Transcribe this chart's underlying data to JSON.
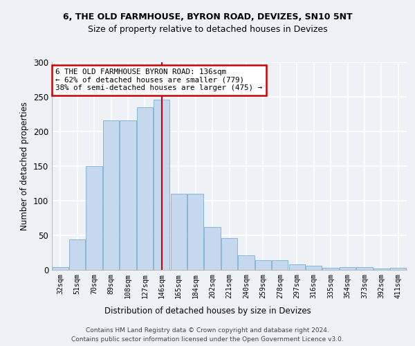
{
  "title1": "6, THE OLD FARMHOUSE, BYRON ROAD, DEVIZES, SN10 5NT",
  "title2": "Size of property relative to detached houses in Devizes",
  "xlabel": "Distribution of detached houses by size in Devizes",
  "ylabel": "Number of detached properties",
  "categories": [
    "32sqm",
    "51sqm",
    "70sqm",
    "89sqm",
    "108sqm",
    "127sqm",
    "146sqm",
    "165sqm",
    "184sqm",
    "202sqm",
    "221sqm",
    "240sqm",
    "259sqm",
    "278sqm",
    "297sqm",
    "316sqm",
    "335sqm",
    "354sqm",
    "373sqm",
    "392sqm",
    "411sqm"
  ],
  "values": [
    4,
    44,
    150,
    216,
    216,
    235,
    246,
    110,
    110,
    62,
    46,
    21,
    14,
    14,
    8,
    6,
    3,
    4,
    4,
    2,
    3
  ],
  "bar_color": "#c5d8ed",
  "bar_edge_color": "#7aafd4",
  "property_line_x": 6.0,
  "annotation_text": "6 THE OLD FARMHOUSE BYRON ROAD: 136sqm\n← 62% of detached houses are smaller (779)\n38% of semi-detached houses are larger (475) →",
  "footer1": "Contains HM Land Registry data © Crown copyright and database right 2024.",
  "footer2": "Contains public sector information licensed under the Open Government Licence v3.0.",
  "ylim": [
    0,
    300
  ],
  "yticks": [
    0,
    50,
    100,
    150,
    200,
    250,
    300
  ],
  "bg_color": "#eef2f7",
  "grid_color": "#ffffff",
  "annotation_box_color": "#ffffff",
  "annotation_box_edge": "#cc0000",
  "line_color": "#cc0000",
  "title1_fontsize": 9,
  "title2_fontsize": 9
}
